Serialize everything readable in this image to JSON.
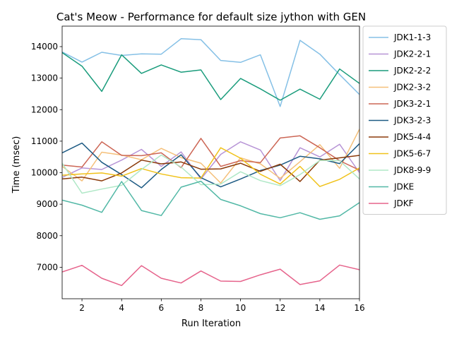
{
  "chart_data": {
    "type": "line",
    "title": "Cat's Meow - Performance for default size jython with GEN",
    "xlabel": "Run Iteration",
    "ylabel": "Time (msec)",
    "xlim": [
      1,
      16
    ],
    "ylim": [
      6000,
      14650
    ],
    "xticks": [
      2,
      4,
      6,
      8,
      10,
      12,
      14,
      16
    ],
    "yticks": [
      7000,
      8000,
      9000,
      10000,
      11000,
      12000,
      13000,
      14000
    ],
    "grid": false,
    "legend_position": "outside-right",
    "x": [
      1,
      2,
      3,
      4,
      5,
      6,
      7,
      8,
      9,
      10,
      11,
      12,
      13,
      14,
      15,
      16
    ],
    "series": [
      {
        "name": "JDK1-1-3",
        "color": "#85c0e6",
        "values": [
          13830,
          13510,
          13820,
          13720,
          13770,
          13760,
          14250,
          14220,
          13560,
          13500,
          13740,
          12100,
          14200,
          13760,
          13110,
          12480
        ]
      },
      {
        "name": "JDK2-2-1",
        "color": "#b794d6",
        "values": [
          9850,
          10150,
          10100,
          10400,
          10740,
          10200,
          10660,
          9800,
          10580,
          10980,
          10720,
          9750,
          10790,
          10500,
          10900,
          10000
        ]
      },
      {
        "name": "JDK2-2-2",
        "color": "#1a9c7c",
        "values": [
          13810,
          13380,
          12580,
          13740,
          13150,
          13420,
          13190,
          13260,
          12320,
          12990,
          12660,
          12300,
          12650,
          12330,
          13290,
          12830
        ]
      },
      {
        "name": "JDK2-3-2",
        "color": "#f5c07a",
        "values": [
          10200,
          9740,
          10650,
          10560,
          10410,
          10770,
          10480,
          10300,
          9670,
          10470,
          10280,
          9820,
          10350,
          10890,
          10140,
          11380
        ]
      },
      {
        "name": "JDK3-2-1",
        "color": "#cc6655",
        "values": [
          10240,
          10180,
          10980,
          10550,
          10540,
          10630,
          10160,
          11090,
          10200,
          10380,
          10320,
          11100,
          11170,
          10790,
          10380,
          10080
        ]
      },
      {
        "name": "JDK3-2-3",
        "color": "#1e5b84",
        "values": [
          10630,
          10940,
          10330,
          9940,
          9520,
          10100,
          10570,
          9840,
          9550,
          9800,
          10070,
          10240,
          10520,
          10440,
          10290,
          10920
        ]
      },
      {
        "name": "JDK5-4-4",
        "color": "#8b3a0a",
        "values": [
          9800,
          9860,
          9740,
          9990,
          10400,
          10280,
          10340,
          10110,
          10120,
          10300,
          10040,
          10270,
          9720,
          10400,
          10470,
          10550
        ]
      },
      {
        "name": "JDK5-6-7",
        "color": "#f0c21a",
        "values": [
          9920,
          9960,
          9990,
          9890,
          10130,
          9960,
          9840,
          9830,
          10790,
          10460,
          9950,
          9640,
          10200,
          9560,
          9790,
          10150
        ]
      },
      {
        "name": "JDK8-9-9",
        "color": "#b0e8c7",
        "values": [
          10300,
          9350,
          9480,
          9600,
          10100,
          10560,
          10180,
          9620,
          9640,
          10030,
          9750,
          9590,
          9940,
          10390,
          10380,
          9800
        ]
      },
      {
        "name": "JDKE",
        "color": "#52b8a6",
        "values": [
          9130,
          8970,
          8740,
          9720,
          8800,
          8640,
          9540,
          9730,
          9150,
          8950,
          8700,
          8570,
          8730,
          8520,
          8630,
          9050
        ]
      },
      {
        "name": "JDKF",
        "color": "#e6648c",
        "values": [
          6850,
          7060,
          6650,
          6420,
          7050,
          6650,
          6500,
          6880,
          6560,
          6550,
          6760,
          6940,
          6450,
          6570,
          7070,
          6920
        ]
      }
    ]
  }
}
